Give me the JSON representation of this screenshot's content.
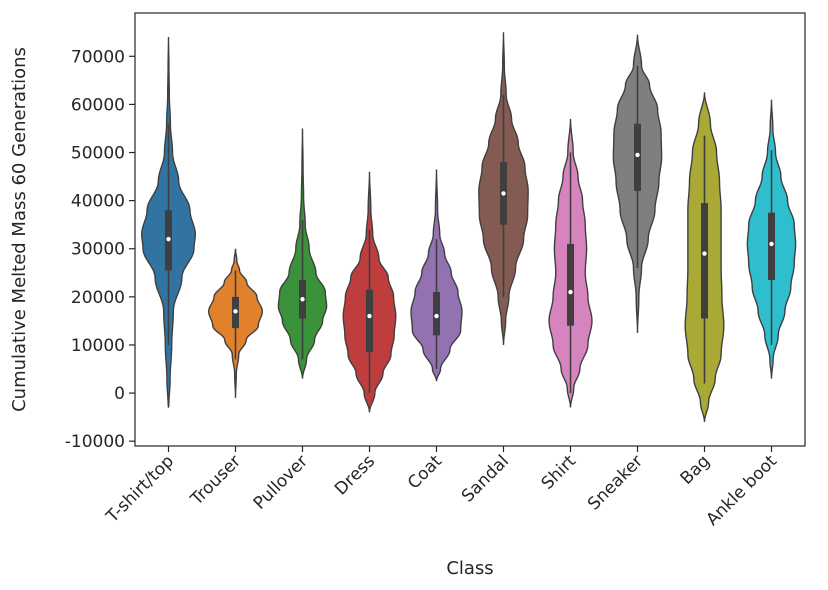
{
  "chart_data": {
    "type": "violin",
    "xlabel": "Class",
    "ylabel": "Cumulative Melted Mass 60 Generations",
    "ylim": [
      -11000,
      79000
    ],
    "yticks": [
      -10000,
      0,
      10000,
      20000,
      30000,
      40000,
      50000,
      60000,
      70000
    ],
    "categories": [
      "T-shirt/top",
      "Trouser",
      "Pullover",
      "Dress",
      "Coat",
      "Sandal",
      "Shirt",
      "Sneaker",
      "Bag",
      "Ankle boot"
    ],
    "colors": [
      "#3274a1",
      "#e1812c",
      "#3a923a",
      "#c03d3e",
      "#9372b2",
      "#845b53",
      "#d684bd",
      "#7f7f7f",
      "#a9aa35",
      "#2ebecd"
    ],
    "grid": false,
    "series": [
      {
        "category": "T-shirt/top",
        "min": -3000,
        "q1": 25500,
        "median": 32000,
        "q3": 38000,
        "max": 74000,
        "whisker_low": 10000,
        "whisker_high": 56000,
        "density": [
          [
            -3000,
            0.01
          ],
          [
            3000,
            0.06
          ],
          [
            10000,
            0.12
          ],
          [
            17000,
            0.18
          ],
          [
            24000,
            0.5
          ],
          [
            30000,
            0.95
          ],
          [
            33000,
            1.0
          ],
          [
            38000,
            0.8
          ],
          [
            44000,
            0.38
          ],
          [
            50000,
            0.15
          ],
          [
            56000,
            0.07
          ],
          [
            62000,
            0.03
          ],
          [
            68000,
            0.015
          ],
          [
            74000,
            0.0
          ]
        ]
      },
      {
        "category": "Trouser",
        "min": -1000,
        "q1": 13500,
        "median": 17000,
        "q3": 20000,
        "max": 30000,
        "whisker_low": 7000,
        "whisker_high": 25500,
        "density": [
          [
            -1000,
            0.0
          ],
          [
            4000,
            0.03
          ],
          [
            8000,
            0.12
          ],
          [
            11000,
            0.4
          ],
          [
            14000,
            0.85
          ],
          [
            17000,
            1.0
          ],
          [
            20000,
            0.8
          ],
          [
            23000,
            0.42
          ],
          [
            25500,
            0.15
          ],
          [
            27500,
            0.05
          ],
          [
            30000,
            0.0
          ]
        ]
      },
      {
        "category": "Pullover",
        "min": 3000,
        "q1": 15500,
        "median": 19500,
        "q3": 23500,
        "max": 55000,
        "whisker_low": 7000,
        "whisker_high": 36000,
        "density": [
          [
            3000,
            0.0
          ],
          [
            7000,
            0.15
          ],
          [
            11000,
            0.45
          ],
          [
            15000,
            0.75
          ],
          [
            18000,
            0.9
          ],
          [
            21000,
            0.85
          ],
          [
            25000,
            0.5
          ],
          [
            30000,
            0.25
          ],
          [
            35000,
            0.1
          ],
          [
            41000,
            0.04
          ],
          [
            47000,
            0.02
          ],
          [
            55000,
            0.0
          ]
        ]
      },
      {
        "category": "Dress",
        "min": -4000,
        "q1": 8500,
        "median": 16000,
        "q3": 21500,
        "max": 46000,
        "whisker_low": 0,
        "whisker_high": 34000,
        "density": [
          [
            -4000,
            0.0
          ],
          [
            0,
            0.2
          ],
          [
            4000,
            0.5
          ],
          [
            8000,
            0.8
          ],
          [
            12000,
            0.92
          ],
          [
            16000,
            0.98
          ],
          [
            20000,
            0.9
          ],
          [
            24000,
            0.7
          ],
          [
            28000,
            0.35
          ],
          [
            33000,
            0.12
          ],
          [
            38000,
            0.05
          ],
          [
            46000,
            0.0
          ]
        ]
      },
      {
        "category": "Coat",
        "min": 2500,
        "q1": 12000,
        "median": 16000,
        "q3": 21000,
        "max": 46500,
        "whisker_low": 5000,
        "whisker_high": 32000,
        "density": [
          [
            2500,
            0.0
          ],
          [
            5000,
            0.15
          ],
          [
            9000,
            0.5
          ],
          [
            13000,
            0.9
          ],
          [
            17000,
            0.95
          ],
          [
            21000,
            0.8
          ],
          [
            25000,
            0.55
          ],
          [
            29000,
            0.3
          ],
          [
            33000,
            0.12
          ],
          [
            38000,
            0.04
          ],
          [
            46500,
            0.0
          ]
        ]
      },
      {
        "category": "Sandal",
        "min": 10000,
        "q1": 35000,
        "median": 41500,
        "q3": 48000,
        "max": 75000,
        "whisker_low": 20000,
        "whisker_high": 62000,
        "density": [
          [
            10000,
            0.0
          ],
          [
            15000,
            0.08
          ],
          [
            20000,
            0.2
          ],
          [
            26000,
            0.45
          ],
          [
            32000,
            0.75
          ],
          [
            37000,
            0.9
          ],
          [
            42000,
            0.92
          ],
          [
            47000,
            0.8
          ],
          [
            52000,
            0.55
          ],
          [
            57000,
            0.3
          ],
          [
            62000,
            0.1
          ],
          [
            68000,
            0.03
          ],
          [
            75000,
            0.0
          ]
        ]
      },
      {
        "category": "Shirt",
        "min": -3000,
        "q1": 14000,
        "median": 21000,
        "q3": 31000,
        "max": 57000,
        "whisker_low": 0,
        "whisker_high": 50000,
        "density": [
          [
            -3000,
            0.0
          ],
          [
            1000,
            0.12
          ],
          [
            5000,
            0.35
          ],
          [
            10000,
            0.65
          ],
          [
            15000,
            0.8
          ],
          [
            20000,
            0.65
          ],
          [
            25000,
            0.55
          ],
          [
            30000,
            0.6
          ],
          [
            35000,
            0.55
          ],
          [
            40000,
            0.45
          ],
          [
            45000,
            0.28
          ],
          [
            50000,
            0.1
          ],
          [
            57000,
            0.0
          ]
        ]
      },
      {
        "category": "Sneaker",
        "min": 12500,
        "q1": 42000,
        "median": 49500,
        "q3": 56000,
        "max": 74500,
        "whisker_low": 26000,
        "whisker_high": 68000,
        "density": [
          [
            12500,
            0.0
          ],
          [
            20000,
            0.05
          ],
          [
            26000,
            0.15
          ],
          [
            32000,
            0.4
          ],
          [
            38000,
            0.65
          ],
          [
            44000,
            0.8
          ],
          [
            49000,
            0.9
          ],
          [
            54000,
            0.88
          ],
          [
            59000,
            0.75
          ],
          [
            64000,
            0.45
          ],
          [
            68000,
            0.15
          ],
          [
            74500,
            0.0
          ]
        ]
      },
      {
        "category": "Bag",
        "min": -6000,
        "q1": 15500,
        "median": 29000,
        "q3": 39500,
        "max": 62500,
        "whisker_low": 2000,
        "whisker_high": 53500,
        "density": [
          [
            -6000,
            0.0
          ],
          [
            -2000,
            0.15
          ],
          [
            3000,
            0.4
          ],
          [
            8000,
            0.62
          ],
          [
            14000,
            0.72
          ],
          [
            20000,
            0.65
          ],
          [
            26000,
            0.62
          ],
          [
            32000,
            0.62
          ],
          [
            38000,
            0.62
          ],
          [
            44000,
            0.56
          ],
          [
            50000,
            0.45
          ],
          [
            56000,
            0.22
          ],
          [
            62500,
            0.0
          ]
        ]
      },
      {
        "category": "Ankle boot",
        "min": 3000,
        "q1": 23500,
        "median": 31000,
        "q3": 37500,
        "max": 61000,
        "whisker_low": 10000,
        "whisker_high": 50500,
        "density": [
          [
            3000,
            0.0
          ],
          [
            7000,
            0.06
          ],
          [
            12000,
            0.25
          ],
          [
            17000,
            0.5
          ],
          [
            22000,
            0.72
          ],
          [
            27000,
            0.85
          ],
          [
            31000,
            0.9
          ],
          [
            35000,
            0.85
          ],
          [
            40000,
            0.6
          ],
          [
            45000,
            0.35
          ],
          [
            50000,
            0.15
          ],
          [
            55000,
            0.05
          ],
          [
            61000,
            0.0
          ]
        ]
      }
    ]
  }
}
